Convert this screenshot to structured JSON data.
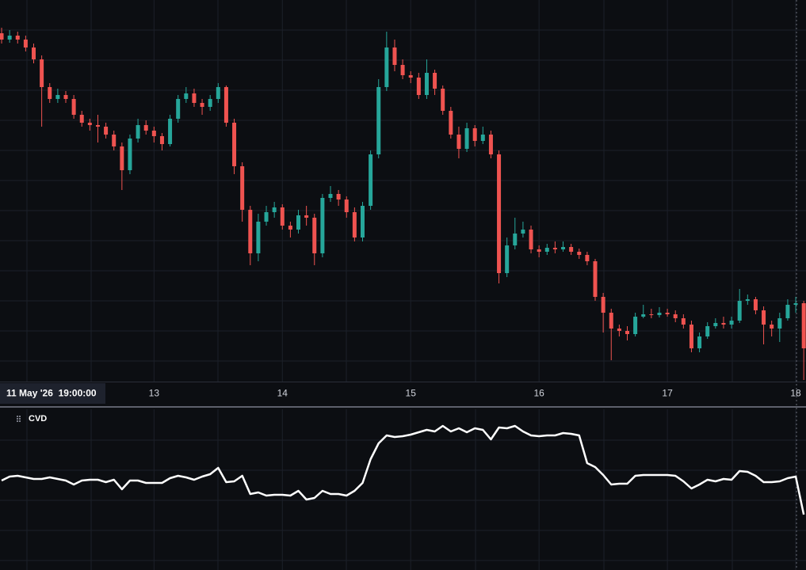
{
  "chart_data": [
    {
      "type": "candlestick",
      "x": [
        11.8125,
        11.875,
        11.9375,
        12,
        12.0625,
        12.125,
        12.1875,
        12.25,
        12.3125,
        12.375,
        12.4375,
        12.5,
        12.5625,
        12.625,
        12.6875,
        12.75,
        12.8125,
        12.875,
        12.9375,
        13,
        13.0625,
        13.125,
        13.1875,
        13.25,
        13.3125,
        13.375,
        13.4375,
        13.5,
        13.5625,
        13.625,
        13.6875,
        13.75,
        13.8125,
        13.875,
        13.9375,
        14,
        14.0625,
        14.125,
        14.1875,
        14.25,
        14.3125,
        14.375,
        14.4375,
        14.5,
        14.5625,
        14.625,
        14.6875,
        14.75,
        14.8125,
        14.875,
        14.9375,
        15,
        15.0625,
        15.125,
        15.1875,
        15.25,
        15.3125,
        15.375,
        15.4375,
        15.5,
        15.5625,
        15.625,
        15.6875,
        15.75,
        15.8125,
        15.875,
        15.9375,
        16,
        16.0625,
        16.125,
        16.1875,
        16.25,
        16.3125,
        16.375,
        16.4375,
        16.5,
        16.5625,
        16.625,
        16.6875,
        16.75,
        16.8125,
        16.875,
        16.9375,
        17,
        17.0625,
        17.125,
        17.1875,
        17.25,
        17.3125,
        17.375,
        17.4375,
        17.5,
        17.5625,
        17.625,
        17.6875,
        17.75,
        17.8125,
        17.875,
        17.9375,
        18,
        18.0625
      ],
      "open": [
        43.8,
        43,
        43.5,
        43,
        42,
        40.5,
        37,
        35.5,
        36,
        35.5,
        33.5,
        32.5,
        32.2,
        32,
        31,
        29.5,
        26.5,
        30.5,
        32.2,
        31.5,
        30.8,
        29.8,
        33,
        35.5,
        36.2,
        35,
        34.5,
        35.5,
        37,
        32.5,
        27,
        21.5,
        16,
        20,
        21.2,
        21.8,
        19.5,
        19,
        20.8,
        20.5,
        16,
        23,
        23.5,
        22.8,
        21.2,
        18,
        22,
        28.5,
        37,
        42,
        39.8,
        38.5,
        38.2,
        36,
        38.8,
        36.8,
        34,
        31,
        29.2,
        31.8,
        30.2,
        31,
        28.5,
        13.5,
        17,
        18.5,
        19,
        16.5,
        16.2,
        16.7,
        16.5,
        16.8,
        16.2,
        15.8,
        15,
        10.5,
        8.5,
        6.5,
        6.2,
        5.8,
        8,
        8.3,
        8.2,
        8.5,
        8.3,
        7.8,
        7,
        4,
        5.5,
        6.8,
        7.2,
        7,
        7.5,
        10,
        10.2,
        8.8,
        7,
        6.5,
        7.8,
        9.5,
        9.7
      ],
      "high": [
        44.5,
        44.2,
        44,
        43.5,
        42.5,
        41,
        37.5,
        36.8,
        36.5,
        36,
        34,
        33,
        33.5,
        32.5,
        31.5,
        30,
        31,
        33,
        32.8,
        32,
        31.2,
        33.5,
        36,
        37,
        36.8,
        35.5,
        36,
        37.5,
        37.2,
        33,
        27.5,
        22,
        21,
        22,
        22.5,
        22.2,
        20,
        21.5,
        22,
        21,
        23.5,
        24.5,
        24,
        23.2,
        21.8,
        22.5,
        29,
        38,
        44,
        43,
        40.5,
        39,
        38.8,
        40.5,
        39.2,
        37.2,
        34.5,
        32,
        32.5,
        32.2,
        32,
        31.5,
        29,
        18,
        20.5,
        20,
        19.5,
        17,
        17.2,
        17.5,
        17.5,
        17.2,
        16.6,
        16.2,
        15.3,
        11,
        9,
        7,
        6.8,
        8.5,
        9.5,
        9,
        9.2,
        9,
        8.8,
        8.3,
        7.5,
        6,
        7.3,
        7.8,
        8,
        8,
        11.5,
        10.8,
        10.5,
        9.3,
        7.5,
        8.5,
        10.2,
        10.5,
        10
      ],
      "low": [
        42.5,
        42.6,
        42.5,
        41.5,
        40,
        32,
        35,
        35,
        35,
        33,
        32,
        31.5,
        30,
        30.5,
        29,
        24,
        26,
        30,
        31,
        30,
        29,
        29.5,
        32.5,
        35,
        34.5,
        33.5,
        34,
        35,
        32,
        26,
        20,
        14.5,
        15,
        19.5,
        20.5,
        19,
        18,
        18.5,
        19.5,
        14.5,
        15.5,
        22.5,
        22,
        20.5,
        17.5,
        17.5,
        21.5,
        28,
        36.5,
        39,
        38,
        37.5,
        35.5,
        35.5,
        36,
        33.5,
        30.5,
        28,
        28.8,
        29.5,
        29.8,
        28,
        12.2,
        13,
        16.5,
        18,
        16,
        15.5,
        15.8,
        16,
        16.2,
        15.8,
        15.3,
        14.5,
        10,
        6,
        2.5,
        5.5,
        5,
        5.5,
        7.8,
        7.8,
        7.9,
        8,
        7.3,
        6.5,
        3.5,
        3.5,
        5.2,
        6.5,
        6.5,
        6.5,
        7.2,
        9.5,
        8.3,
        4.5,
        5.5,
        4.8,
        7.5,
        8.5,
        0
      ],
      "close": [
        43,
        43.5,
        43,
        42,
        40.5,
        37,
        35.5,
        36,
        35.5,
        33.5,
        32.5,
        32.2,
        32,
        31,
        29.5,
        26.5,
        30.5,
        32.2,
        31.5,
        30.8,
        29.8,
        33,
        35.5,
        36.2,
        35,
        34.5,
        35.5,
        37,
        32.5,
        27,
        21.5,
        16,
        20,
        21.2,
        21.8,
        19.5,
        19,
        20.8,
        20.5,
        16,
        23,
        23.5,
        22.8,
        21.2,
        18,
        22,
        28.5,
        37,
        42,
        39.8,
        38.5,
        38.2,
        36,
        38.8,
        36.8,
        34,
        31,
        29.2,
        31.8,
        30.2,
        31,
        28.5,
        13.5,
        17,
        18.5,
        19,
        16.5,
        16.2,
        16.7,
        16.5,
        16.8,
        16.2,
        15.8,
        15,
        10.5,
        8.5,
        6.5,
        6.2,
        5.8,
        8,
        8.3,
        8.2,
        8.5,
        8.3,
        7.8,
        7,
        4,
        5.5,
        6.8,
        7.2,
        7,
        7.5,
        10,
        10.2,
        8.8,
        7,
        6.5,
        7.8,
        9.5,
        9.7,
        4
      ],
      "up_color": "#26a69a",
      "down_color": "#ef5350",
      "xlim": [
        11.8,
        18.08
      ],
      "xticks": [
        13,
        14,
        15,
        16,
        17,
        18
      ],
      "ylim": [
        0,
        48
      ],
      "grid": true,
      "crosshair_label": "11 May '26  19:00:00"
    },
    {
      "type": "line",
      "title": "CVD",
      "series": [
        {
          "color": "#ffffff",
          "values": [
            113,
            118,
            119,
            117,
            115,
            115,
            117,
            115,
            113,
            108,
            113,
            114,
            114,
            111,
            114,
            102,
            113,
            113,
            110,
            110,
            110,
            116,
            119,
            117,
            114,
            118,
            121,
            129,
            111,
            112,
            119,
            96,
            98,
            94,
            95,
            95,
            94,
            100,
            89,
            91,
            100,
            96,
            96,
            94,
            100,
            110,
            140,
            160,
            170,
            168,
            169,
            171,
            174,
            177,
            175,
            182,
            175,
            179,
            174,
            179,
            177,
            165,
            180,
            179,
            182,
            175,
            170,
            169,
            170,
            170,
            173,
            172,
            170,
            135,
            130,
            120,
            108,
            109,
            109,
            119,
            120,
            120,
            120,
            120,
            119,
            112,
            103,
            108,
            114,
            112,
            115,
            114,
            125,
            124,
            119,
            111,
            111,
            112,
            116,
            118,
            70
          ]
        }
      ],
      "ylim": [
        0,
        200
      ]
    }
  ]
}
